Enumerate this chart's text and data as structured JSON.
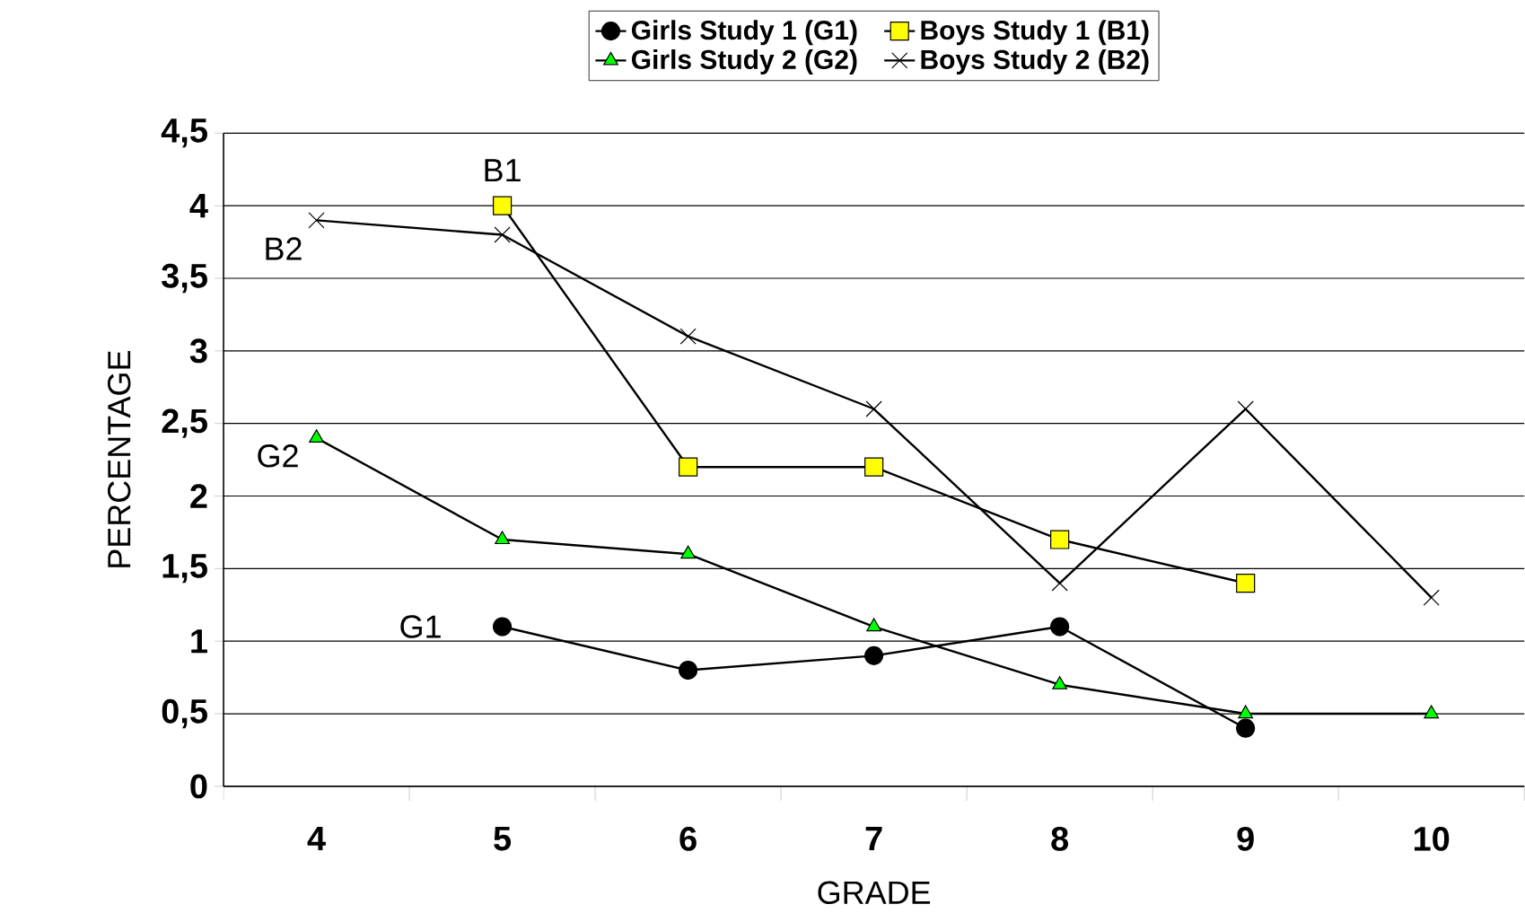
{
  "chart_data": {
    "type": "line",
    "xlabel": "GRADE",
    "ylabel": "PERCENTAGE",
    "categories": [
      "4",
      "5",
      "6",
      "7",
      "8",
      "9",
      "10"
    ],
    "series": [
      {
        "name": "Girls Study 1 (G1)",
        "color": "#000000",
        "marker": "circle",
        "values": [
          null,
          1.1,
          0.8,
          0.9,
          1.1,
          0.4,
          null
        ]
      },
      {
        "name": "Boys Study 1 (B1)",
        "color": "#ffff00",
        "marker": "square",
        "values": [
          null,
          4.0,
          2.2,
          2.2,
          1.7,
          1.4,
          null
        ]
      },
      {
        "name": "Girls Study 2 (G2)",
        "color": "#00ff00",
        "marker": "triangle",
        "values": [
          2.4,
          1.7,
          1.6,
          1.1,
          0.7,
          0.5,
          0.5
        ]
      },
      {
        "name": "Boys Study 2 (B2)",
        "color": "#000000",
        "marker": "cross",
        "values": [
          3.9,
          3.8,
          3.1,
          2.6,
          1.4,
          2.6,
          1.3
        ]
      }
    ],
    "ylim": [
      0,
      4.5
    ],
    "yticks": [
      0,
      {
        "value": 0.5,
        "label": "0,5"
      },
      1,
      {
        "value": 1.5,
        "label": "1,5"
      },
      2,
      {
        "value": 2.5,
        "label": "2,5"
      },
      3,
      {
        "value": 3.5,
        "label": "3,5"
      },
      4,
      {
        "value": 4.5,
        "label": "4,5"
      }
    ],
    "grid": "y",
    "legend": "top",
    "line_style": "solid",
    "annotations": [
      {
        "text": "B1",
        "x": "5",
        "y": 4.0
      },
      {
        "text": "B2",
        "x": "4",
        "y": 3.9
      },
      {
        "text": "G2",
        "x": "4",
        "y": 2.4
      },
      {
        "text": "G1",
        "x": "5",
        "y": 1.1
      }
    ]
  }
}
